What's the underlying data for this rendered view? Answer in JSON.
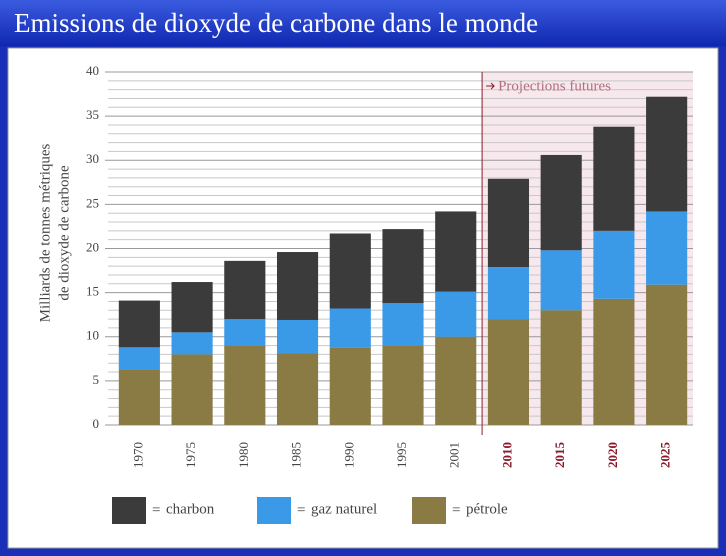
{
  "chart_data": {
    "type": "stacked_bar",
    "title": "Emissions de dioxyde de carbone dans le monde",
    "ylabel": [
      "Milliards de tonnes métriques",
      "de dioxyde de carbone"
    ],
    "categories": [
      "1970",
      "1975",
      "1980",
      "1985",
      "1990",
      "1995",
      "2001",
      "2010",
      "2015",
      "2020",
      "2025"
    ],
    "series": [
      {
        "name": "pétrole",
        "color": "#8a7b45",
        "values": [
          6.3,
          8,
          9,
          8.1,
          8.8,
          9,
          10,
          12,
          13,
          14.3,
          15.9
        ]
      },
      {
        "name": "gaz naturel",
        "color": "#3a9ae8",
        "values": [
          2.5,
          2.5,
          3,
          3.8,
          4.4,
          4.8,
          5.1,
          5.9,
          6.8,
          7.7,
          8.3
        ]
      },
      {
        "name": "charbon",
        "color": "#3b3b3b",
        "values": [
          5.3,
          5.7,
          6.6,
          7.7,
          8.5,
          8.4,
          9.1,
          10,
          10.8,
          11.8,
          13
        ]
      }
    ],
    "legend_order": [
      2,
      1,
      0
    ],
    "legend_separator": "=",
    "ylim": [
      0,
      40
    ],
    "yticks": [
      0,
      5,
      10,
      15,
      20,
      25,
      30,
      35,
      40
    ],
    "minor_yticks": [
      1,
      2,
      3,
      4,
      6,
      7,
      8,
      9,
      11,
      12,
      13,
      14,
      16,
      17,
      18,
      19,
      21,
      22,
      23,
      24,
      26,
      27,
      28,
      29,
      31,
      32,
      33,
      34,
      36,
      37,
      38,
      39
    ],
    "grid": true,
    "annotation": {
      "text": "Projections futures",
      "start_index": 7,
      "color": "#8a1a2a"
    }
  }
}
